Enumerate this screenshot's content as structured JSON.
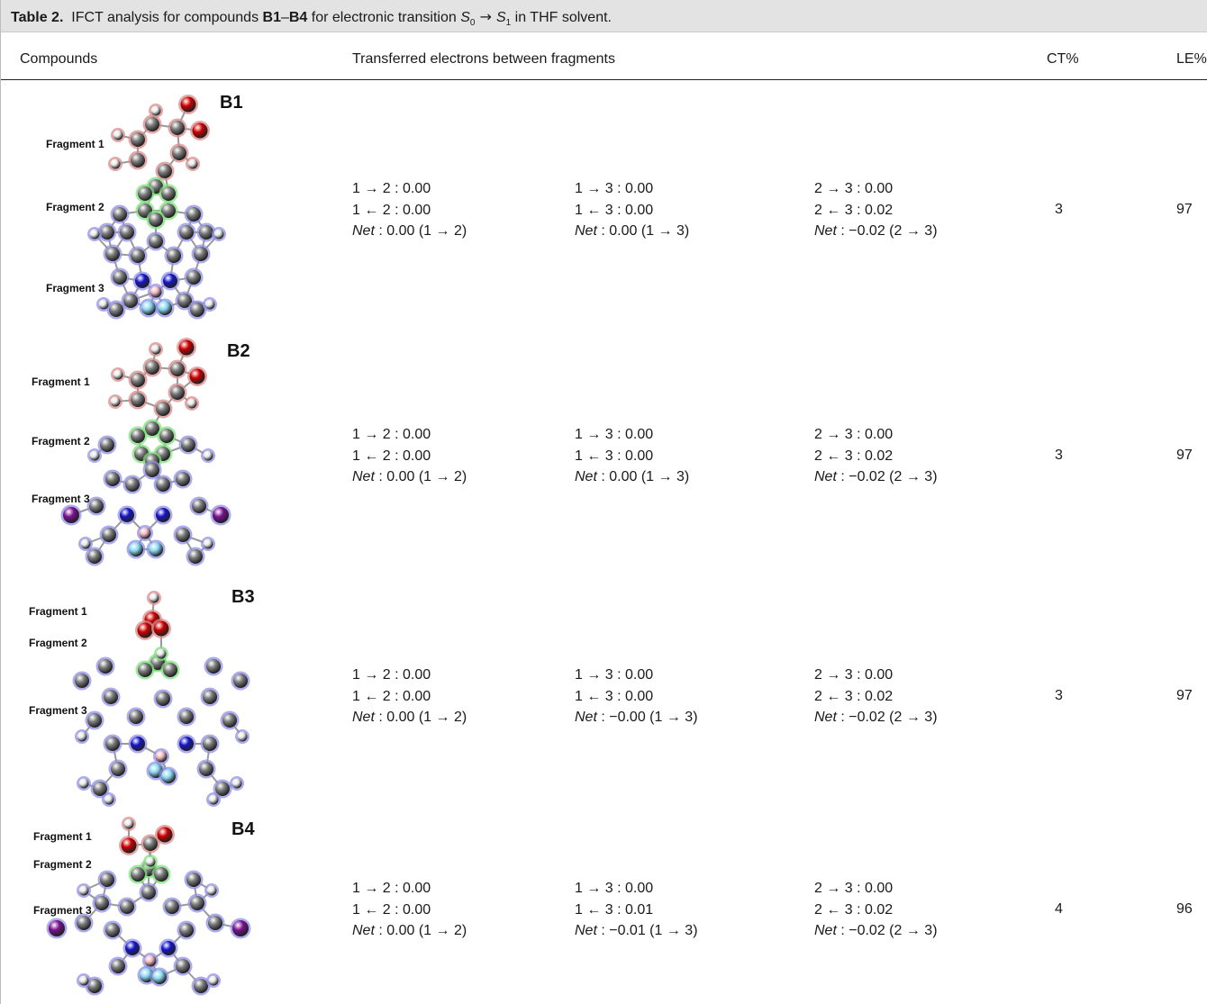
{
  "caption": {
    "label": "Table 2.",
    "text_before": "IFCT analysis for compounds ",
    "range_start": "B1",
    "dash": "–",
    "range_end": "B4",
    "text_mid": " for electronic transition ",
    "s0": "S",
    "s0_sub": "0",
    "arrow": " → ",
    "s1": "S",
    "s1_sub": "1",
    "text_end": " in THF solvent."
  },
  "headers": {
    "compounds": "Compounds",
    "transferred": "Transferred electrons between fragments",
    "ct": "CT%",
    "le": "LE%"
  },
  "fragment_labels": [
    "Fragment 1",
    "Fragment 2",
    "Fragment 3"
  ],
  "rows": [
    {
      "compound": "B1",
      "t12": {
        "fwd": "1 → 2 : 0.00",
        "back": "1 ← 2 : 0.00",
        "net_label": "Net",
        "net_value": " : 0.00 (1 → 2)"
      },
      "t13": {
        "fwd": "1 → 3 :  0.00",
        "back": "1 ← 3 : 0.00",
        "net_label": "Net",
        "net_value": " : 0.00 (1 → 3)"
      },
      "t23": {
        "fwd": "2 → 3 : 0.00",
        "back": "2 ← 3 : 0.02",
        "net_label": "Net",
        "net_value": " : −0.02 (2 → 3)"
      },
      "ct": "3",
      "le": "97"
    },
    {
      "compound": "B2",
      "t12": {
        "fwd": "1 → 2 : 0.00",
        "back": "1 ← 2 : 0.00",
        "net_label": "Net",
        "net_value": " : 0.00 (1 → 2)"
      },
      "t13": {
        "fwd": "1 → 3 :  0.00",
        "back": "1 ← 3 : 0.00",
        "net_label": "Net",
        "net_value": " : 0.00 (1 → 3)"
      },
      "t23": {
        "fwd": "2 → 3 : 0.00",
        "back": "2 ← 3 : 0.02",
        "net_label": "Net",
        "net_value": " : −0.02 (2 → 3)"
      },
      "ct": "3",
      "le": "97"
    },
    {
      "compound": "B3",
      "t12": {
        "fwd": "1 → 2 : 0.00",
        "back": "1 ← 2 : 0.00",
        "net_label": "Net",
        "net_value": " : 0.00 (1 → 2)"
      },
      "t13": {
        "fwd": "1 → 3 :  0.00",
        "back": "1 ← 3 : 0.00",
        "net_label": "Net",
        "net_value": " : −0.00 (1 → 3)"
      },
      "t23": {
        "fwd": "2 → 3 : 0.00",
        "back": "2 ← 3 : 0.02",
        "net_label": "Net",
        "net_value": " : −0.02 (2 → 3)"
      },
      "ct": "3",
      "le": "97"
    },
    {
      "compound": "B4",
      "t12": {
        "fwd": "1 → 2 : 0.00",
        "back": "1 ← 2 : 0.00",
        "net_label": "Net",
        "net_value": " : 0.00 (1 → 2)"
      },
      "t13": {
        "fwd": "1 → 3 :  0.00",
        "back": "1 ← 3 : 0.01",
        "net_label": "Net",
        "net_value": " : −0.01 (1 → 3)"
      },
      "t23": {
        "fwd": "2 → 3 : 0.00",
        "back": "2 ← 3 : 0.02",
        "net_label": "Net",
        "net_value": " : −0.02 (2 → 3)"
      },
      "ct": "4",
      "le": "96"
    }
  ],
  "colors": {
    "fragment1_glow": "#d98a8a",
    "fragment2_glow": "#7ee07e",
    "fragment3_glow": "#8f8fe8",
    "oxygen": "#cc0000",
    "nitrogen": "#1515c8",
    "boron": "#f0b8c0",
    "fluorine": "#8ad8f0",
    "iodine": "#7a1090",
    "carbon": "#7a7a7a",
    "hydrogen": "#e8e8e8",
    "caption_bg": "#e3e3e3"
  }
}
